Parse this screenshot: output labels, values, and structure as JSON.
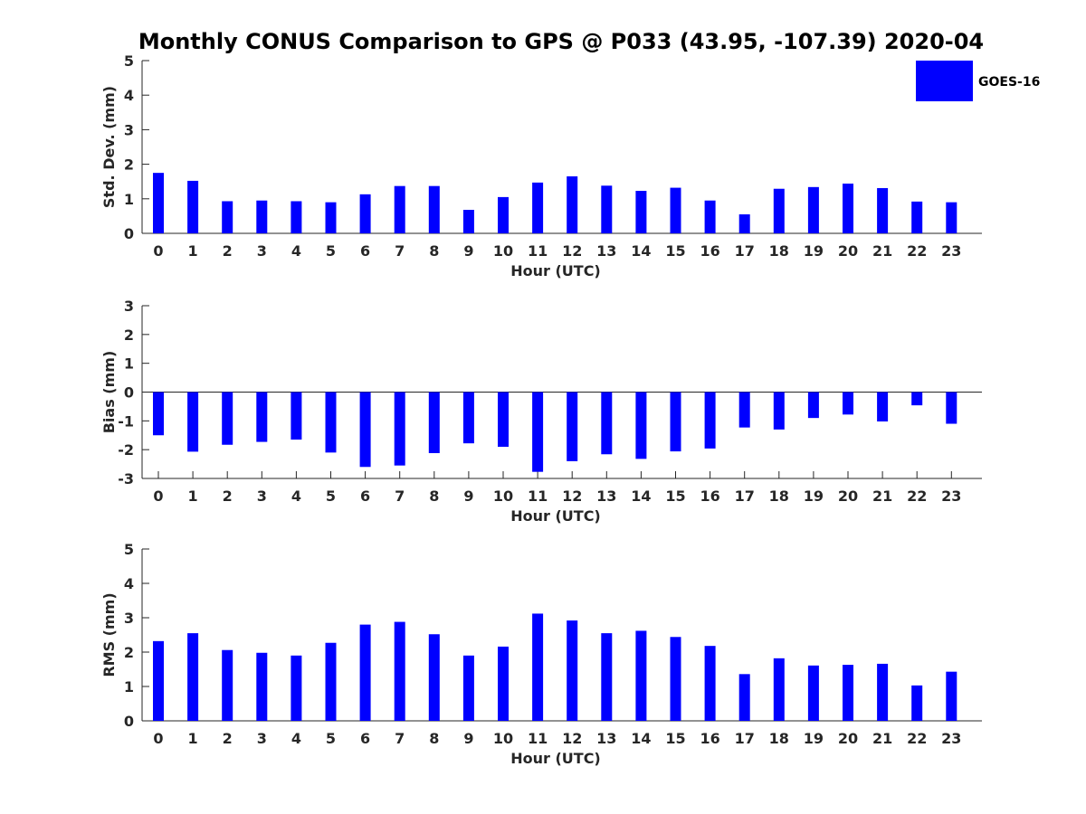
{
  "figure": {
    "title": "Monthly CONUS Comparison to GPS @ P033 (43.95, -107.39) 2020-04",
    "legend": {
      "label": "GOES-16",
      "color": "#0000ff",
      "placement": "top-right"
    }
  },
  "chart_data": [
    {
      "type": "bar",
      "ylabel": "Std. Dev. (mm)",
      "xlabel": "Hour (UTC)",
      "ylim": [
        0,
        5
      ],
      "yticks": [
        0,
        1,
        2,
        3,
        4,
        5
      ],
      "categories": [
        "0",
        "1",
        "2",
        "3",
        "4",
        "5",
        "6",
        "7",
        "8",
        "9",
        "10",
        "11",
        "12",
        "13",
        "14",
        "15",
        "16",
        "17",
        "18",
        "19",
        "20",
        "21",
        "22",
        "23"
      ],
      "series": [
        {
          "name": "GOES-16",
          "values": [
            1.75,
            1.52,
            0.93,
            0.95,
            0.93,
            0.9,
            1.13,
            1.37,
            1.37,
            0.68,
            1.05,
            1.47,
            1.65,
            1.38,
            1.23,
            1.32,
            0.95,
            0.55,
            1.29,
            1.34,
            1.44,
            1.31,
            0.92,
            0.9
          ]
        }
      ],
      "grid": false
    },
    {
      "type": "bar",
      "ylabel": "Bias (mm)",
      "xlabel": "Hour (UTC)",
      "ylim": [
        -3,
        3
      ],
      "yticks": [
        -3,
        -2,
        -1,
        0,
        1,
        2,
        3
      ],
      "categories": [
        "0",
        "1",
        "2",
        "3",
        "4",
        "5",
        "6",
        "7",
        "8",
        "9",
        "10",
        "11",
        "12",
        "13",
        "14",
        "15",
        "16",
        "17",
        "18",
        "19",
        "20",
        "21",
        "22",
        "23"
      ],
      "series": [
        {
          "name": "GOES-16",
          "values": [
            -1.5,
            -2.07,
            -1.83,
            -1.73,
            -1.65,
            -2.1,
            -2.6,
            -2.55,
            -2.12,
            -1.78,
            -1.9,
            -2.77,
            -2.4,
            -2.16,
            -2.32,
            -2.06,
            -1.96,
            -1.23,
            -1.3,
            -0.9,
            -0.78,
            -1.02,
            -0.46,
            -1.1
          ]
        }
      ],
      "grid": false
    },
    {
      "type": "bar",
      "ylabel": "RMS (mm)",
      "xlabel": "Hour (UTC)",
      "ylim": [
        0,
        5
      ],
      "yticks": [
        0,
        1,
        2,
        3,
        4,
        5
      ],
      "categories": [
        "0",
        "1",
        "2",
        "3",
        "4",
        "5",
        "6",
        "7",
        "8",
        "9",
        "10",
        "11",
        "12",
        "13",
        "14",
        "15",
        "16",
        "17",
        "18",
        "19",
        "20",
        "21",
        "22",
        "23"
      ],
      "series": [
        {
          "name": "GOES-16",
          "values": [
            2.32,
            2.55,
            2.06,
            1.98,
            1.9,
            2.27,
            2.8,
            2.88,
            2.52,
            1.9,
            2.16,
            3.12,
            2.92,
            2.55,
            2.62,
            2.44,
            2.18,
            1.36,
            1.82,
            1.61,
            1.63,
            1.66,
            1.03,
            1.43
          ]
        }
      ],
      "grid": false
    }
  ]
}
